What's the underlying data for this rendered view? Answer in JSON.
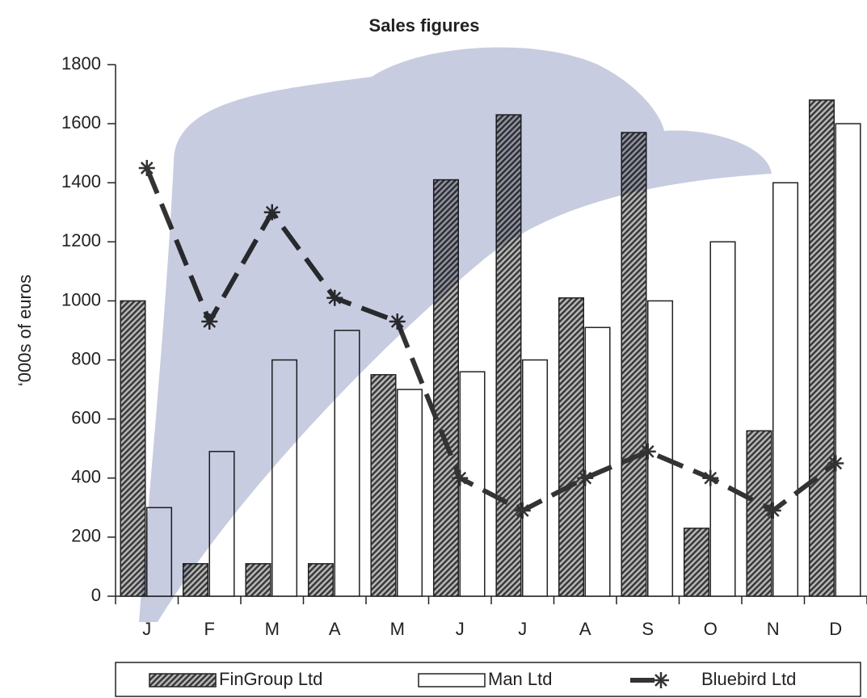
{
  "chart_data": {
    "type": "bar",
    "title": "Sales figures",
    "y_label": "‘000s of euros",
    "categories": [
      "J",
      "F",
      "M",
      "A",
      "M",
      "J",
      "J",
      "A",
      "S",
      "O",
      "N",
      "D"
    ],
    "series": [
      {
        "name": "FinGroup Ltd",
        "type": "bar",
        "pattern": "hatch",
        "color": "#3a3a3a",
        "values": [
          1000,
          110,
          110,
          110,
          750,
          1410,
          1630,
          1010,
          1570,
          230,
          560,
          1680
        ]
      },
      {
        "name": "Man Ltd",
        "type": "bar",
        "color": "#ffffff",
        "values": [
          300,
          490,
          800,
          900,
          700,
          760,
          800,
          910,
          1000,
          1200,
          1400,
          1600
        ]
      },
      {
        "name": "Bluebird Ltd",
        "type": "line",
        "color": "#333333",
        "values": [
          1450,
          930,
          1300,
          1010,
          930,
          400,
          290,
          400,
          490,
          400,
          290,
          450
        ]
      }
    ],
    "ylim": [
      0,
      1800
    ],
    "yticks": [
      0,
      200,
      400,
      600,
      800,
      1000,
      1200,
      1400,
      1600,
      1800
    ],
    "legend": "bottom"
  }
}
